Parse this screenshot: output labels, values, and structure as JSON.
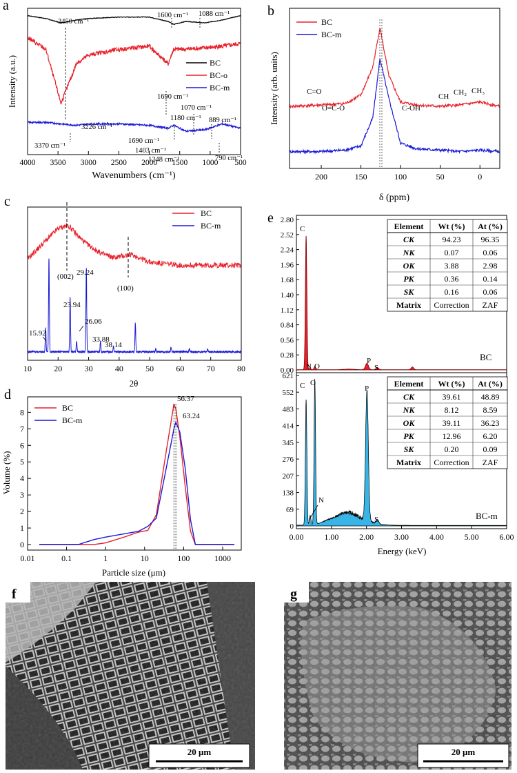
{
  "panels": {
    "a": {
      "letter": "a",
      "ylabel": "Intensity (a.u.)",
      "xlabel": "Wavenumbers (cm⁻¹)",
      "xlim": [
        4000,
        500
      ],
      "xticks": [
        "4000",
        "3500",
        "3000",
        "2500",
        "2000",
        "1500",
        "1000",
        "500"
      ],
      "legend": [
        "BC",
        "BC-o",
        "BC-m"
      ],
      "annotations": [
        "3450 cm⁻¹",
        "1600 cm⁻¹",
        "1088 cm⁻¹",
        "1690 cm⁻¹",
        "3226 cm⁻¹",
        "1180 cm⁻¹",
        "1070 cm⁻¹",
        "889 cm⁻¹",
        "3370 cm⁻¹",
        "1690 cm⁻¹",
        "1403 cm⁻¹",
        "1248 cm⁻¹",
        "790 cm⁻¹"
      ]
    },
    "b": {
      "letter": "b",
      "ylabel": "Intensity (arb. units)",
      "xlabel": "δ (ppm)",
      "xlim": [
        240,
        -25
      ],
      "xticks": [
        "200",
        "150",
        "100",
        "50",
        "0"
      ],
      "legend": [
        "BC",
        "BC-m"
      ],
      "annotations": [
        "C=O",
        "O=C-O",
        "C-OH",
        "CH",
        "CH₂",
        "CH₃"
      ]
    },
    "c": {
      "letter": "c",
      "xlabel": "2θ",
      "xlim": [
        10,
        80
      ],
      "xticks": [
        "10",
        "20",
        "30",
        "40",
        "50",
        "60",
        "70",
        "80"
      ],
      "legend": [
        "BC",
        "BC-m"
      ],
      "annotations": [
        "(002)",
        "(100)",
        "29.24",
        "23.94",
        "15.92",
        "26.06",
        "33.88",
        "38.14"
      ]
    },
    "d": {
      "letter": "d",
      "ylabel": "Volume (%)",
      "xlabel": "Particle size (μm)",
      "xscale": "log",
      "xlim": [
        0.01,
        3000
      ],
      "ylim": [
        0,
        8.6
      ],
      "xticks": [
        "0.01",
        "0.1",
        "1",
        "10",
        "100",
        "1000"
      ],
      "yticks": [
        "0",
        "1",
        "2",
        "3",
        "4",
        "5",
        "6",
        "7",
        "8"
      ],
      "legend": [
        "BC",
        "BC-m"
      ],
      "annotations": [
        "56.37",
        "63.24"
      ]
    },
    "e": {
      "letter": "e",
      "xlabel": "Energy (keV)",
      "xticks": [
        "0.00",
        "1.00",
        "2.00",
        "3.00",
        "4.00",
        "5.00",
        "6.00"
      ],
      "top_yticks": [
        "0.00",
        "0.28",
        "0.56",
        "0.84",
        "1.12",
        "1.40",
        "1.68",
        "1.96",
        "2.24",
        "2.52",
        "2.80"
      ],
      "bottom_yticks": [
        "0",
        "69",
        "138",
        "207",
        "276",
        "345",
        "414",
        "483",
        "552",
        "621"
      ],
      "top_label": "BC",
      "bottom_label": "BC-m",
      "top_peaks": [
        "C",
        "N",
        "O",
        "P",
        "S"
      ],
      "bottom_peaks": [
        "C",
        "O",
        "P",
        "N",
        "S"
      ],
      "table_headers": [
        "Element",
        "Wt (%)",
        "At (%)"
      ],
      "table_top": [
        [
          "CK",
          "94.23",
          "96.35"
        ],
        [
          "NK",
          "0.07",
          "0.06"
        ],
        [
          "OK",
          "3.88",
          "2.98"
        ],
        [
          "PK",
          "0.36",
          "0.14"
        ],
        [
          "SK",
          "0.16",
          "0.06"
        ],
        [
          "Matrix",
          "Correction",
          "ZAF"
        ]
      ],
      "table_bottom": [
        [
          "CK",
          "39.61",
          "48.89"
        ],
        [
          "NK",
          "8.12",
          "8.59"
        ],
        [
          "OK",
          "39.11",
          "36.23"
        ],
        [
          "PK",
          "12.96",
          "6.20"
        ],
        [
          "SK",
          "0.20",
          "0.09"
        ],
        [
          "Matrix",
          "Correction",
          "ZAF"
        ]
      ]
    },
    "f": {
      "letter": "f",
      "scale": "20 μm"
    },
    "g": {
      "letter": "g",
      "scale": "20 μm"
    }
  },
  "colors": {
    "bc": "#e8212b",
    "bcm": "#1a1ad6",
    "bco": "#e8212b",
    "bc_black": "#000000",
    "eds_top": "#e8212b",
    "eds_bottom": "#39b4e6"
  },
  "chart_data": [
    {
      "type": "line",
      "panel": "a",
      "xlabel": "Wavenumbers (cm⁻¹)",
      "ylabel": "Intensity (a.u.)",
      "x": [
        4000,
        3700,
        3450,
        3200,
        3000,
        2500,
        2000,
        1690,
        1600,
        1400,
        1088,
        800,
        500
      ],
      "series": [
        {
          "name": "BC",
          "values": [
            0.95,
            0.93,
            0.9,
            0.92,
            0.93,
            0.94,
            0.94,
            0.91,
            0.89,
            0.91,
            0.9,
            0.92,
            0.95
          ]
        },
        {
          "name": "BC-o",
          "values": [
            0.8,
            0.72,
            0.35,
            0.62,
            0.68,
            0.72,
            0.74,
            0.62,
            0.72,
            0.72,
            0.73,
            0.74,
            0.76
          ]
        },
        {
          "name": "BC-m",
          "values": [
            0.22,
            0.22,
            0.21,
            0.2,
            0.21,
            0.21,
            0.2,
            0.18,
            0.2,
            0.16,
            0.17,
            0.21,
            0.18
          ]
        }
      ]
    },
    {
      "type": "line",
      "panel": "b",
      "xlabel": "δ (ppm)",
      "ylabel": "Intensity (arb. units)",
      "x": [
        240,
        200,
        170,
        150,
        135,
        126,
        115,
        100,
        80,
        50,
        25,
        0,
        -25
      ],
      "series": [
        {
          "name": "BC",
          "values": [
            0.44,
            0.45,
            0.46,
            0.52,
            0.72,
            1.0,
            0.66,
            0.47,
            0.45,
            0.44,
            0.45,
            0.47,
            0.44
          ]
        },
        {
          "name": "BC-m",
          "values": [
            0.12,
            0.12,
            0.13,
            0.16,
            0.36,
            0.78,
            0.5,
            0.18,
            0.14,
            0.13,
            0.12,
            0.13,
            0.12
          ]
        }
      ]
    },
    {
      "type": "line",
      "panel": "c",
      "xlabel": "2θ",
      "x": [
        10,
        15.92,
        17,
        20,
        23,
        23.94,
        26.06,
        29.24,
        33.88,
        38.14,
        44,
        45.3,
        50,
        60,
        70,
        80
      ],
      "series": [
        {
          "name": "BC",
          "values": [
            0.66,
            0.78,
            0.8,
            0.86,
            0.88,
            0.87,
            0.82,
            0.76,
            0.7,
            0.67,
            0.69,
            0.68,
            0.64,
            0.62,
            0.62,
            0.62
          ]
        },
        {
          "name": "BC-m",
          "values": [
            0.05,
            0.22,
            0.65,
            0.06,
            0.07,
            0.42,
            0.1,
            0.6,
            0.12,
            0.09,
            0.06,
            0.23,
            0.06,
            0.06,
            0.05,
            0.05
          ]
        }
      ]
    },
    {
      "type": "line",
      "panel": "d",
      "xlabel": "Particle size (μm)",
      "ylabel": "Volume (%)",
      "xscale": "log",
      "xlim": [
        0.01,
        3000
      ],
      "ylim": [
        0,
        8.6
      ],
      "x": [
        0.02,
        0.2,
        0.5,
        1,
        3,
        7,
        12,
        20,
        35,
        56.37,
        63.24,
        80,
        110,
        150,
        200,
        2000
      ],
      "series": [
        {
          "name": "BC",
          "values": [
            0,
            0,
            0,
            0.1,
            0.45,
            0.75,
            0.85,
            1.8,
            5.5,
            8.5,
            8.2,
            6.5,
            3.5,
            0.8,
            0,
            0
          ]
        },
        {
          "name": "BC-m",
          "values": [
            0,
            0,
            0.3,
            0.45,
            0.65,
            0.8,
            1.1,
            1.6,
            4.5,
            7.0,
            7.4,
            6.8,
            4.6,
            1.5,
            0,
            0
          ]
        }
      ],
      "peak_labels": [
        {
          "x": 56.37,
          "label": "56.37"
        },
        {
          "x": 63.24,
          "label": "63.24"
        }
      ]
    },
    {
      "type": "line",
      "panel": "e-top",
      "xlabel": "Energy (keV)",
      "xlim": [
        0,
        6
      ],
      "ylim": [
        0,
        2.8
      ],
      "x": [
        0,
        0.2,
        0.277,
        0.35,
        0.39,
        0.52,
        0.8,
        1.5,
        2.0,
        2.013,
        2.3,
        2.5,
        3.0,
        3.3,
        3.5,
        6.0
      ],
      "series": [
        {
          "name": "BC",
          "values": [
            0,
            0.02,
            2.5,
            0.02,
            0.03,
            0.06,
            0.01,
            0.01,
            0.05,
            0.12,
            0.05,
            0.01,
            0.01,
            0.05,
            0.01,
            0.0
          ]
        }
      ]
    },
    {
      "type": "line",
      "panel": "e-bottom",
      "xlabel": "Energy (keV)",
      "xlim": [
        0,
        6
      ],
      "ylim": [
        0,
        621
      ],
      "x": [
        0,
        0.2,
        0.277,
        0.35,
        0.39,
        0.525,
        0.7,
        1.0,
        1.5,
        1.9,
        2.013,
        2.1,
        2.3,
        2.5,
        3.0,
        4.0,
        5.0,
        6.0
      ],
      "series": [
        {
          "name": "BC-m",
          "values": [
            2,
            5,
            525,
            40,
            60,
            600,
            30,
            20,
            35,
            60,
            540,
            130,
            25,
            10,
            6,
            4,
            3,
            2
          ]
        }
      ]
    }
  ]
}
